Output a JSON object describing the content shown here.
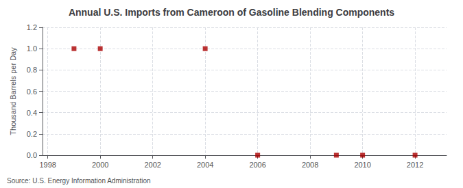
{
  "chart_data": {
    "type": "scatter",
    "title": "Annual U.S. Imports from Cameroon of Gasoline Blending Components",
    "ylabel": "Thousand Barrels per Day",
    "annotation": "Source: U.S. Energy Information Administration",
    "x": [
      1999,
      2000,
      2004,
      2006,
      2009,
      2010,
      2012
    ],
    "values": [
      1.0,
      1.0,
      1.0,
      0.0,
      0.0,
      0.0,
      0.0
    ],
    "color": "#aa0000",
    "marker": "square",
    "xlim": [
      1997.8,
      2013.2
    ],
    "xticks": [
      1998,
      2000,
      2002,
      2004,
      2006,
      2008,
      2010,
      2012
    ],
    "ylim": [
      0.0,
      1.2
    ],
    "yticks": [
      {
        "value": 0.0,
        "label": "0.0"
      },
      0.2,
      0.4,
      0.6,
      0.8,
      {
        "value": 1.0,
        "label": "1.0"
      },
      1.2
    ],
    "grid": true
  }
}
